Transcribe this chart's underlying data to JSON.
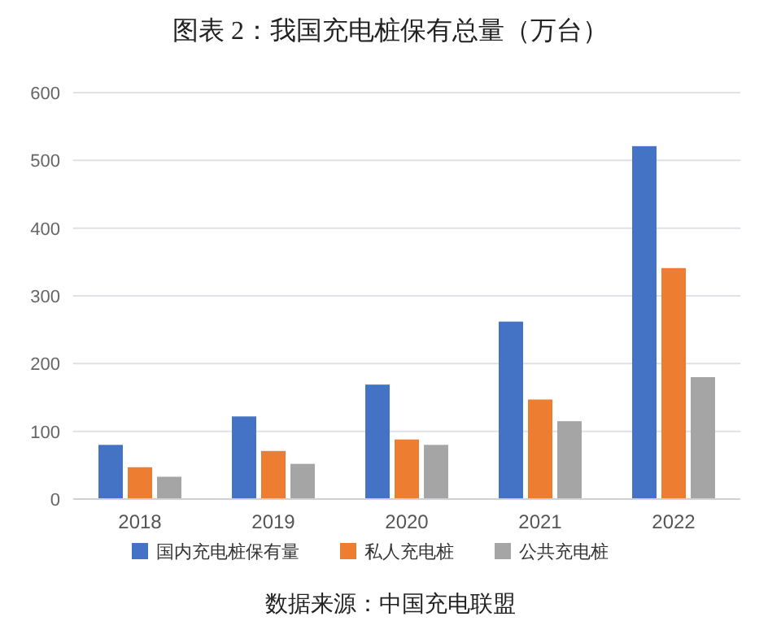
{
  "chart_data": {
    "type": "bar",
    "title": "图表 2：我国充电桩保有总量（万台）",
    "categories": [
      "2018",
      "2019",
      "2020",
      "2021",
      "2022"
    ],
    "series": [
      {
        "name": "国内充电桩保有量",
        "color": "#4472c4",
        "values": [
          80,
          122,
          169,
          262,
          521
        ]
      },
      {
        "name": "私人充电桩",
        "color": "#ed7d31",
        "values": [
          47,
          71,
          88,
          147,
          341
        ]
      },
      {
        "name": "公共充电桩",
        "color": "#a5a5a5",
        "values": [
          33,
          52,
          80,
          115,
          180
        ]
      }
    ],
    "ylim": [
      0,
      600
    ],
    "yticks": [
      0,
      100,
      200,
      300,
      400,
      500,
      600
    ],
    "grid": "y",
    "legend": "bottom",
    "annotations": [
      "数据来源：中国充电联盟"
    ]
  }
}
